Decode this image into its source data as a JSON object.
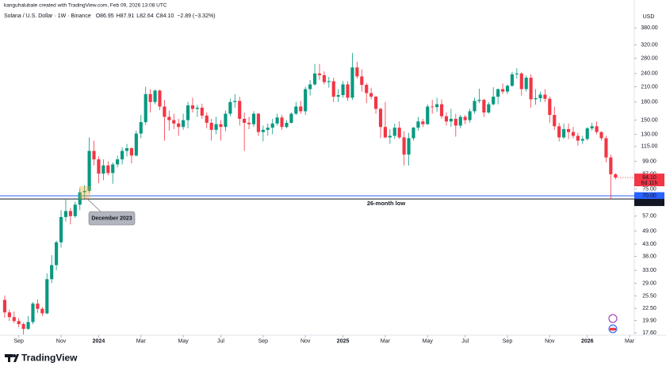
{
  "header": {
    "attribution": "kanguhalubale created with TradingView.com, Feb 09, 2026 13:08 UTC",
    "symbol": "Solana / U.S. Dollar · 1W · Binance",
    "ohlc": [
      "O86.95",
      "H87.91",
      "L82.64",
      "C84.10"
    ],
    "change": "−2.89 (−3.32%)"
  },
  "footer": {
    "brand": "TradingView"
  },
  "chart_data": {
    "type": "candlestick",
    "currency": "USD",
    "log_scale": true,
    "grid": false,
    "up_color": "#089981",
    "down_color": "#f23645",
    "xlim": [
      -1,
      134
    ],
    "ylim": [
      17.18,
      429
    ],
    "xticks": [
      {
        "value": 3,
        "label": "Sep"
      },
      {
        "value": 12,
        "label": "Nov"
      },
      {
        "value": 20,
        "label": "2024"
      },
      {
        "value": 29,
        "label": "Mar"
      },
      {
        "value": 38,
        "label": "May"
      },
      {
        "value": 46,
        "label": "Jul"
      },
      {
        "value": 55,
        "label": "Sep"
      },
      {
        "value": 64,
        "label": "Nov"
      },
      {
        "value": 72,
        "label": "2025"
      },
      {
        "value": 81,
        "label": "Mar"
      },
      {
        "value": 90,
        "label": "May"
      },
      {
        "value": 98,
        "label": "Jul"
      },
      {
        "value": 107,
        "label": "Sep"
      },
      {
        "value": 116,
        "label": "Nov"
      },
      {
        "value": 124,
        "label": "2026"
      },
      {
        "value": 133,
        "label": "Mar"
      }
    ],
    "yticks": [
      {
        "value": 17.6,
        "label": "17.60"
      },
      {
        "value": 19.9,
        "label": "19.90"
      },
      {
        "value": 22.5,
        "label": "22.50"
      },
      {
        "value": 25.5,
        "label": "25.50"
      },
      {
        "value": 29,
        "label": "29.00"
      },
      {
        "value": 33,
        "label": "33.00"
      },
      {
        "value": 38,
        "label": "38.00"
      },
      {
        "value": 43,
        "label": "43.00"
      },
      {
        "value": 49,
        "label": "49.00"
      },
      {
        "value": 57,
        "label": "57.00"
      },
      {
        "value": 75,
        "label": "75.00"
      },
      {
        "value": 87,
        "label": "87.00"
      },
      {
        "value": 99,
        "label": "99.00"
      },
      {
        "value": 115,
        "label": "115.00"
      },
      {
        "value": 130,
        "label": "130.00"
      },
      {
        "value": 150,
        "label": "150.00"
      },
      {
        "value": 180,
        "label": "180.00"
      },
      {
        "value": 210,
        "label": "210.00"
      },
      {
        "value": 240,
        "label": "240.00"
      },
      {
        "value": 280,
        "label": "280.00"
      },
      {
        "value": 320,
        "label": "320.00"
      },
      {
        "value": 380,
        "label": "380.00"
      }
    ],
    "hlines": [
      {
        "value": 70,
        "label": "70.00",
        "color": "#2962ff"
      },
      {
        "value": 67.8,
        "label": "67.80",
        "color": "#131722"
      }
    ],
    "last_price": {
      "value": 84.1,
      "label": "84.10",
      "countdown": "6d 11h"
    },
    "annotations": [
      {
        "text": "December 2023"
      },
      {
        "text": "26-month low"
      }
    ],
    "ohlc": [
      [
        24.5,
        25.6,
        20.5,
        21.6
      ],
      [
        21.6,
        22.2,
        19.8,
        20.6
      ],
      [
        20.6,
        21.8,
        19.4,
        19.8
      ],
      [
        19.8,
        20.4,
        18.6,
        19.2
      ],
      [
        19.2,
        19.5,
        17.3,
        18.3
      ],
      [
        18.3,
        20.8,
        18.1,
        19.6
      ],
      [
        19.6,
        24,
        19.2,
        23.6
      ],
      [
        23.6,
        24.6,
        21.5,
        22.4
      ],
      [
        22.4,
        22.8,
        20.8,
        21.4
      ],
      [
        21.4,
        32,
        21.2,
        30.2
      ],
      [
        30.2,
        38.5,
        29,
        34.8
      ],
      [
        34.8,
        44.5,
        33,
        43.8
      ],
      [
        43.8,
        60.5,
        41.5,
        56.5
      ],
      [
        56.5,
        68,
        54,
        60
      ],
      [
        60,
        62,
        52.5,
        57
      ],
      [
        57,
        66,
        56,
        64
      ],
      [
        64,
        75.5,
        60.5,
        72.5
      ],
      [
        72.5,
        78,
        68,
        73.5
      ],
      [
        73.5,
        126,
        72,
        110
      ],
      [
        110,
        122,
        95,
        101
      ],
      [
        101,
        104,
        79.5,
        87.5
      ],
      [
        87.5,
        101,
        82,
        95
      ],
      [
        95,
        99,
        86,
        88
      ],
      [
        88,
        98,
        79,
        96
      ],
      [
        96,
        105,
        93,
        101
      ],
      [
        101,
        114,
        96,
        110
      ],
      [
        110,
        118,
        104,
        113
      ],
      [
        113,
        114,
        97,
        105
      ],
      [
        105,
        135,
        104,
        131
      ],
      [
        131,
        158,
        125,
        147
      ],
      [
        147,
        210,
        143,
        195
      ],
      [
        195,
        205,
        162,
        180
      ],
      [
        180,
        204,
        176,
        202
      ],
      [
        202,
        204,
        166,
        172
      ],
      [
        172,
        184,
        122,
        155
      ],
      [
        155,
        165,
        135,
        150
      ],
      [
        150,
        160,
        137,
        145
      ],
      [
        145,
        152,
        128,
        140
      ],
      [
        140,
        160,
        136,
        150
      ],
      [
        150,
        180,
        138,
        174
      ],
      [
        174,
        188,
        162,
        168
      ],
      [
        168,
        175,
        155,
        170
      ],
      [
        170,
        177,
        152,
        157
      ],
      [
        157,
        162,
        138,
        146
      ],
      [
        146,
        152,
        122,
        136
      ],
      [
        136,
        155,
        130,
        144
      ],
      [
        144,
        150,
        122,
        140
      ],
      [
        140,
        165,
        134,
        160
      ],
      [
        160,
        186,
        156,
        180
      ],
      [
        180,
        195,
        170,
        182
      ],
      [
        182,
        190,
        142,
        152
      ],
      [
        152,
        162,
        110,
        146
      ],
      [
        146,
        155,
        137,
        144
      ],
      [
        144,
        164,
        140,
        160
      ],
      [
        160,
        161,
        128,
        133
      ],
      [
        133,
        142,
        121,
        136
      ],
      [
        136,
        145,
        128,
        139
      ],
      [
        139,
        152,
        130,
        145
      ],
      [
        145,
        160,
        142,
        154
      ],
      [
        154,
        158,
        136,
        140
      ],
      [
        140,
        150,
        138,
        146
      ],
      [
        146,
        162,
        145,
        160
      ],
      [
        160,
        180,
        158,
        172
      ],
      [
        172,
        182,
        160,
        164
      ],
      [
        164,
        210,
        158,
        205
      ],
      [
        205,
        225,
        192,
        215
      ],
      [
        215,
        264,
        212,
        240
      ],
      [
        240,
        264,
        225,
        236
      ],
      [
        236,
        245,
        215,
        220
      ],
      [
        220,
        232,
        208,
        222
      ],
      [
        222,
        230,
        180,
        190
      ],
      [
        190,
        205,
        180,
        193
      ],
      [
        193,
        222,
        188,
        215
      ],
      [
        215,
        222,
        182,
        188
      ],
      [
        188,
        295,
        184,
        255
      ],
      [
        255,
        270,
        228,
        233
      ],
      [
        233,
        250,
        200,
        214
      ],
      [
        214,
        218,
        178,
        197
      ],
      [
        197,
        208,
        185,
        190
      ],
      [
        190,
        192,
        160,
        168
      ],
      [
        168,
        170,
        125,
        140
      ],
      [
        140,
        180,
        125,
        126
      ],
      [
        126,
        137,
        118,
        128
      ],
      [
        128,
        145,
        124,
        139
      ],
      [
        139,
        148,
        124,
        126
      ],
      [
        126,
        134,
        95,
        106
      ],
      [
        106,
        132,
        95,
        125
      ],
      [
        125,
        140,
        122,
        139
      ],
      [
        139,
        155,
        135,
        148
      ],
      [
        148,
        152,
        140,
        144
      ],
      [
        144,
        176,
        143,
        172
      ],
      [
        172,
        184,
        160,
        171
      ],
      [
        171,
        188,
        163,
        176
      ],
      [
        176,
        185,
        152,
        156
      ],
      [
        156,
        162,
        142,
        148
      ],
      [
        148,
        168,
        140,
        152
      ],
      [
        152,
        160,
        127,
        142
      ],
      [
        142,
        158,
        138,
        155
      ],
      [
        155,
        158,
        144,
        150
      ],
      [
        150,
        168,
        146,
        164
      ],
      [
        164,
        188,
        160,
        182
      ],
      [
        182,
        206,
        178,
        184
      ],
      [
        184,
        186,
        155,
        162
      ],
      [
        162,
        180,
        160,
        176
      ],
      [
        176,
        209,
        174,
        190
      ],
      [
        190,
        206,
        176,
        205
      ],
      [
        205,
        217,
        195,
        200
      ],
      [
        200,
        215,
        195,
        212
      ],
      [
        212,
        244,
        210,
        238
      ],
      [
        238,
        253,
        228,
        240
      ],
      [
        240,
        243,
        192,
        205
      ],
      [
        205,
        235,
        200,
        230
      ],
      [
        230,
        238,
        170,
        185
      ],
      [
        185,
        205,
        175,
        187
      ],
      [
        187,
        200,
        180,
        194
      ],
      [
        194,
        205,
        180,
        186
      ],
      [
        186,
        190,
        146,
        158
      ],
      [
        158,
        172,
        136,
        141
      ],
      [
        141,
        146,
        121,
        126
      ],
      [
        126,
        145,
        124,
        137
      ],
      [
        137,
        145,
        124,
        133
      ],
      [
        133,
        140,
        125,
        128
      ],
      [
        128,
        132,
        116,
        122
      ],
      [
        122,
        128,
        118,
        124
      ],
      [
        124,
        140,
        122,
        138
      ],
      [
        138,
        146,
        135,
        141
      ],
      [
        141,
        148,
        130,
        133
      ],
      [
        133,
        134,
        122,
        125
      ],
      [
        125,
        128,
        98,
        103
      ],
      [
        103,
        106,
        67.8,
        86.95
      ],
      [
        86.95,
        87.91,
        82.64,
        84.1
      ]
    ]
  }
}
